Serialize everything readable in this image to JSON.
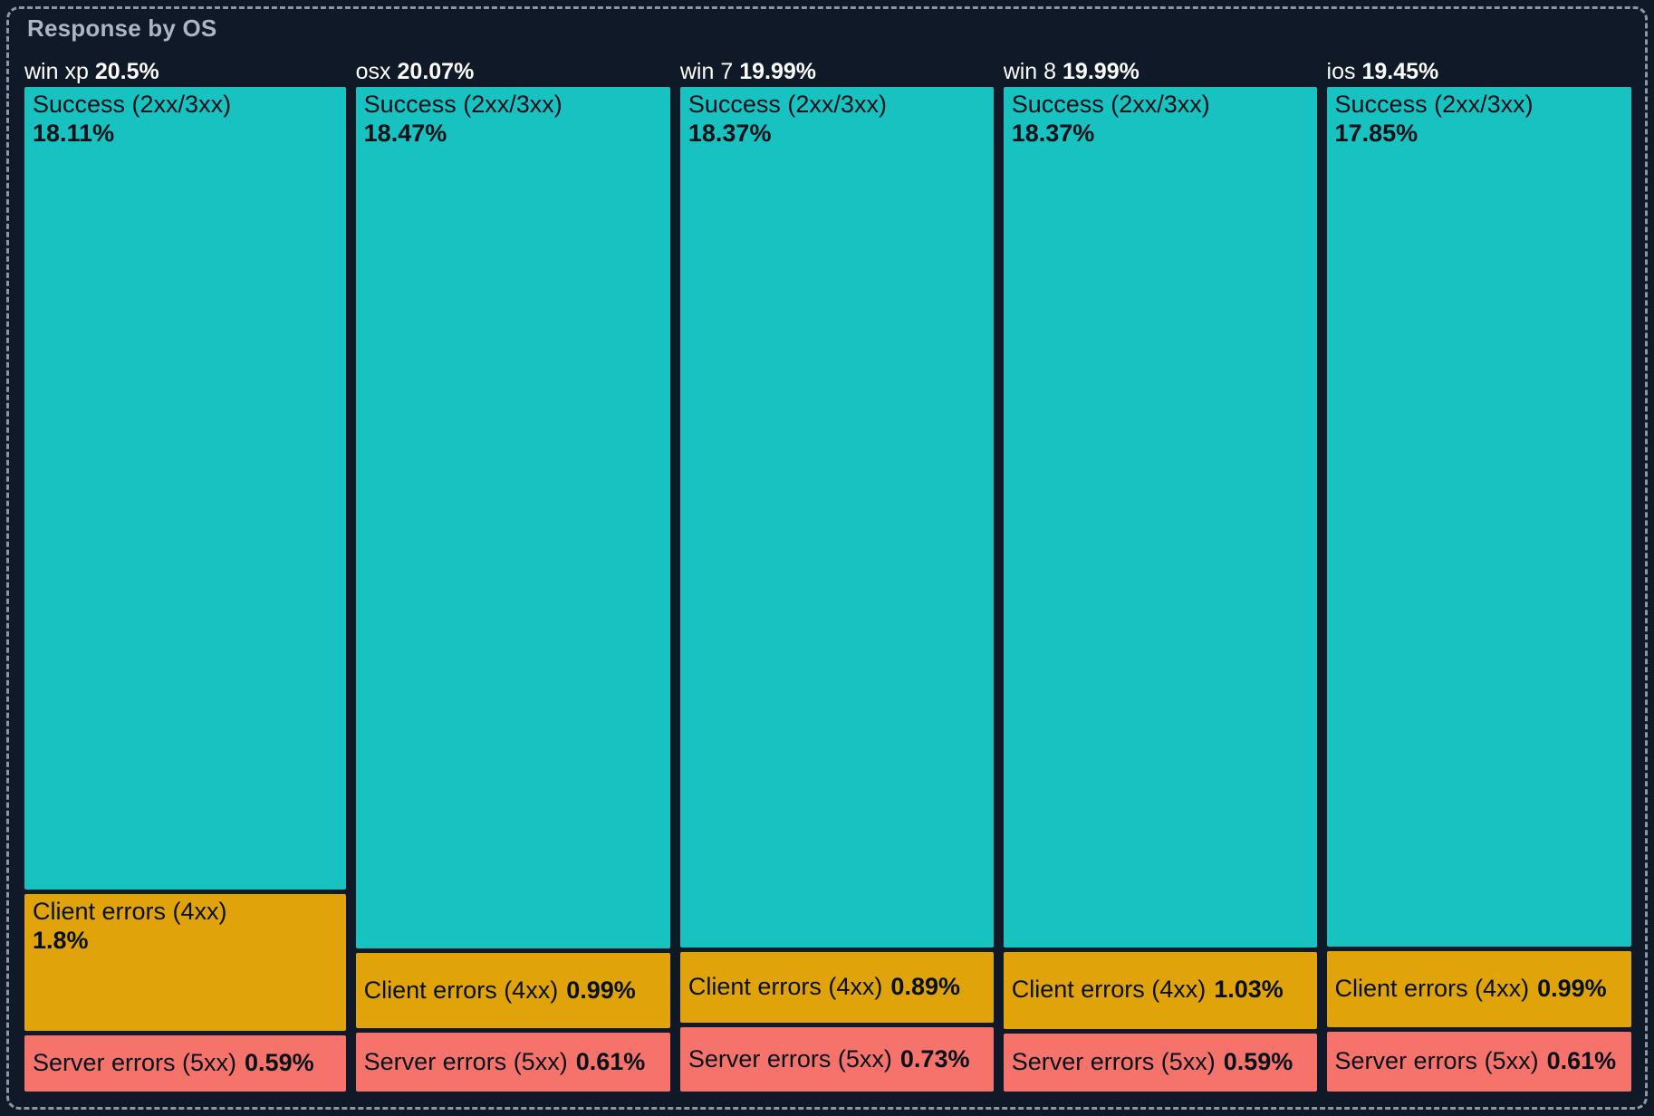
{
  "panel": {
    "title": "Response by OS"
  },
  "colors": {
    "background": "#0F1928",
    "selection_border": "#8A97AB",
    "title_text": "#ACB7C4",
    "header_text": "#FFFFFF",
    "block_text": "#081018",
    "success": "#18C2C0",
    "client_errors": "#E0A40A",
    "server_errors": "#F6736C"
  },
  "chart_data": {
    "type": "treemap",
    "variant": "mosaic-columns",
    "title": "Response by OS",
    "unit": "%",
    "legend": "none",
    "layout_hint": "column widths proportional to category totals; segment heights proportional to values within each column",
    "series_labels": [
      "Success (2xx/3xx)",
      "Client errors (4xx)",
      "Server errors (5xx)"
    ],
    "categories": [
      {
        "name": "win xp",
        "total": 20.5,
        "total_display": "20.5%",
        "segments": [
          {
            "label": "Success (2xx/3xx)",
            "value": 18.11,
            "value_display": "18.11%",
            "color_key": "success"
          },
          {
            "label": "Client errors (4xx)",
            "value": 1.8,
            "value_display": "1.8%",
            "color_key": "client_errors"
          },
          {
            "label": "Server errors (5xx)",
            "value": 0.59,
            "value_display": "0.59%",
            "color_key": "server_errors"
          }
        ]
      },
      {
        "name": "osx",
        "total": 20.07,
        "total_display": "20.07%",
        "segments": [
          {
            "label": "Success (2xx/3xx)",
            "value": 18.47,
            "value_display": "18.47%",
            "color_key": "success"
          },
          {
            "label": "Client errors (4xx)",
            "value": 0.99,
            "value_display": "0.99%",
            "color_key": "client_errors"
          },
          {
            "label": "Server errors (5xx)",
            "value": 0.61,
            "value_display": "0.61%",
            "color_key": "server_errors"
          }
        ]
      },
      {
        "name": "win 7",
        "total": 19.99,
        "total_display": "19.99%",
        "segments": [
          {
            "label": "Success (2xx/3xx)",
            "value": 18.37,
            "value_display": "18.37%",
            "color_key": "success"
          },
          {
            "label": "Client errors (4xx)",
            "value": 0.89,
            "value_display": "0.89%",
            "color_key": "client_errors"
          },
          {
            "label": "Server errors (5xx)",
            "value": 0.73,
            "value_display": "0.73%",
            "color_key": "server_errors"
          }
        ]
      },
      {
        "name": "win 8",
        "total": 19.99,
        "total_display": "19.99%",
        "segments": [
          {
            "label": "Success (2xx/3xx)",
            "value": 18.37,
            "value_display": "18.37%",
            "color_key": "success"
          },
          {
            "label": "Client errors (4xx)",
            "value": 1.03,
            "value_display": "1.03%",
            "color_key": "client_errors"
          },
          {
            "label": "Server errors (5xx)",
            "value": 0.59,
            "value_display": "0.59%",
            "color_key": "server_errors"
          }
        ]
      },
      {
        "name": "ios",
        "total": 19.45,
        "total_display": "19.45%",
        "segments": [
          {
            "label": "Success (2xx/3xx)",
            "value": 17.85,
            "value_display": "17.85%",
            "color_key": "success"
          },
          {
            "label": "Client errors (4xx)",
            "value": 0.99,
            "value_display": "0.99%",
            "color_key": "client_errors"
          },
          {
            "label": "Server errors (5xx)",
            "value": 0.61,
            "value_display": "0.61%",
            "color_key": "server_errors"
          }
        ]
      }
    ]
  }
}
